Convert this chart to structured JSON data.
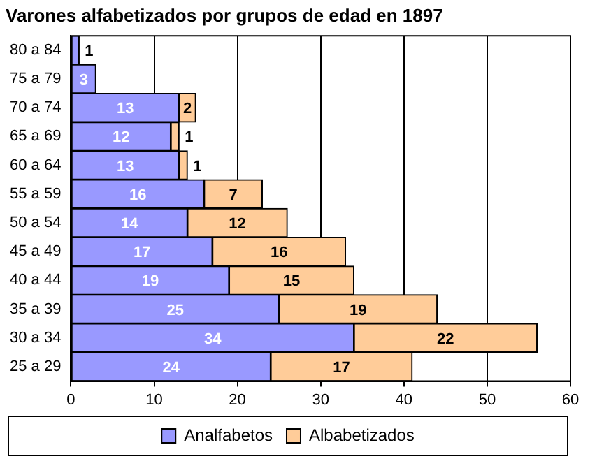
{
  "chart_data": {
    "type": "bar",
    "orientation": "horizontal",
    "stacked": true,
    "title": "Varones alfabetizados por grupos de edad en 1897",
    "categories": [
      "80 a 84",
      "75 a 79",
      "70 a 74",
      "65 a 69",
      "60 a 64",
      "55 a 59",
      "50 a 54",
      "45 a 49",
      "40 a 44",
      "35 a 39",
      "30 a 34",
      "25 a 29"
    ],
    "series": [
      {
        "name": "Analfabetos",
        "color": "#9999ff",
        "values": [
          1,
          3,
          13,
          12,
          13,
          16,
          14,
          17,
          19,
          25,
          34,
          24
        ]
      },
      {
        "name": "Albabetizados",
        "color": "#ffcc99",
        "values": [
          null,
          null,
          2,
          1,
          1,
          7,
          12,
          16,
          15,
          19,
          22,
          17
        ]
      }
    ],
    "xlim": [
      0,
      60
    ],
    "xticks": [
      0,
      10,
      20,
      30,
      40,
      50,
      60
    ],
    "grid": "x",
    "legend": "bottom",
    "data_labels": true
  }
}
